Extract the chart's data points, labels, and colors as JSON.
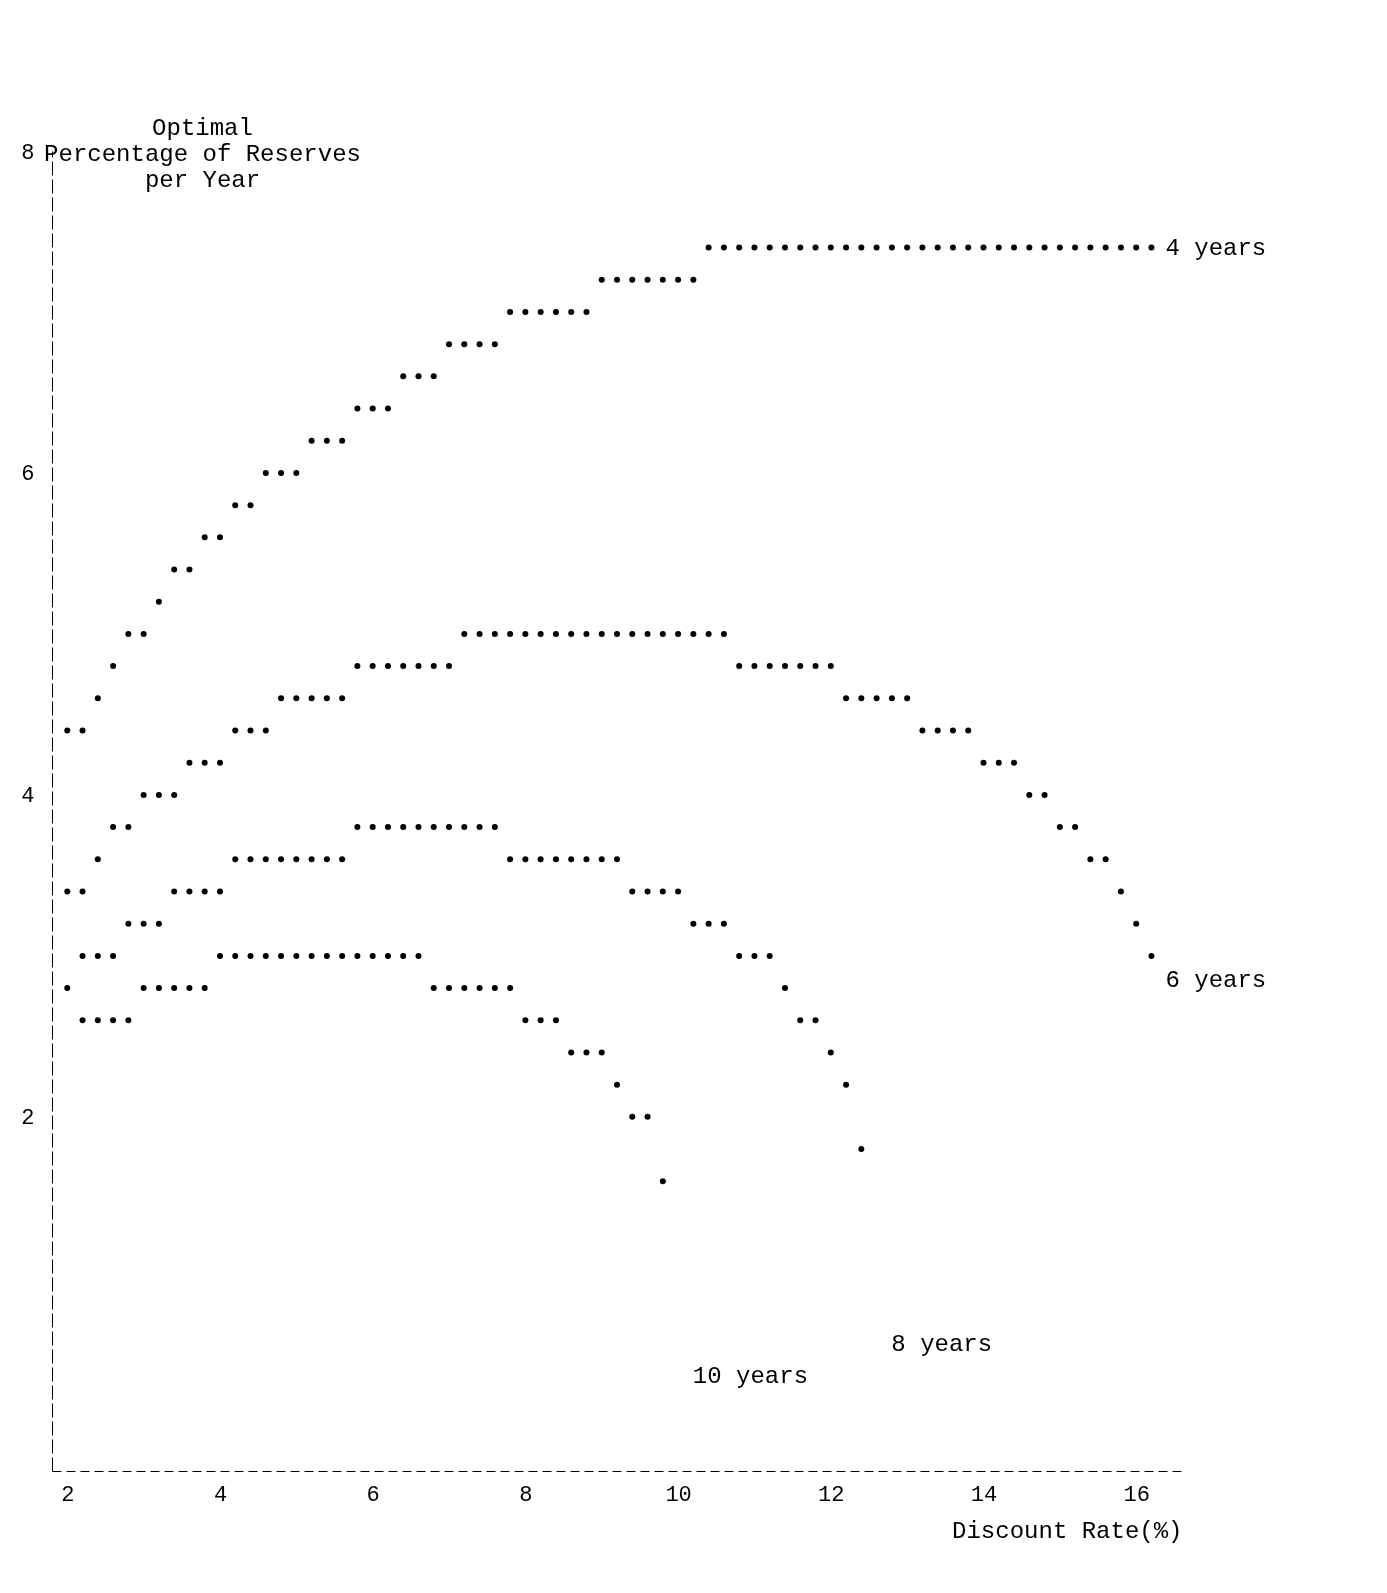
{
  "chart_data": {
    "type": "scatter",
    "xlabel": "Discount Rate(%)",
    "ylabel": "Optimal\nPercentage of Reserves\nper Year",
    "marker": "circle",
    "xlim": [
      1.8,
      16.6
    ],
    "ylim": [
      -0.2,
      8
    ],
    "xticks": [
      2,
      4,
      6,
      8,
      10,
      12,
      14,
      16
    ],
    "yticks": [
      2,
      4,
      6,
      8
    ],
    "series": [
      {
        "name": "4 years",
        "color": "#000000",
        "x": [
          2.0,
          2.2,
          2.4,
          2.6,
          2.8,
          3.0,
          3.2,
          3.4,
          3.6,
          3.8,
          4.0,
          4.2,
          4.4,
          4.6,
          4.8,
          5.0,
          5.2,
          5.4,
          5.6,
          5.8,
          6.0,
          6.2,
          6.4,
          6.6,
          6.8,
          7.0,
          7.2,
          7.4,
          7.6,
          7.8,
          8.0,
          8.2,
          8.4,
          8.6,
          8.8,
          9.0,
          9.2,
          9.4,
          9.6,
          9.8,
          10.0,
          10.2,
          10.4,
          10.6,
          10.8,
          11.0,
          11.2,
          11.4,
          11.6,
          11.8,
          12.0,
          12.2,
          12.4,
          12.6,
          12.8,
          13.0,
          13.2,
          13.4,
          13.6,
          13.8,
          14.0,
          14.2,
          14.4,
          14.6,
          14.8,
          15.0,
          15.2,
          15.4,
          15.6,
          15.8,
          16.0,
          16.2
        ],
        "values": [
          4.4,
          4.4,
          4.6,
          4.8,
          5.0,
          5.0,
          5.2,
          5.4,
          5.4,
          5.6,
          5.6,
          5.8,
          5.8,
          6.0,
          6.0,
          6.0,
          6.2,
          6.2,
          6.2,
          6.4,
          6.4,
          6.4,
          6.6,
          6.6,
          6.6,
          6.8,
          6.8,
          6.8,
          6.8,
          7.0,
          7.0,
          7.0,
          7.0,
          7.0,
          7.0,
          7.2,
          7.2,
          7.2,
          7.2,
          7.2,
          7.2,
          7.2,
          7.4,
          7.4,
          7.4,
          7.4,
          7.4,
          7.4,
          7.4,
          7.4,
          7.4,
          7.4,
          7.4,
          7.4,
          7.4,
          7.4,
          7.4,
          7.4,
          7.4,
          7.4,
          7.4,
          7.4,
          7.4,
          7.4,
          7.4,
          7.4,
          7.4,
          7.4,
          7.4,
          7.4,
          7.4,
          7.4
        ]
      },
      {
        "name": "6 years",
        "color": "#000000",
        "x": [
          2.0,
          2.2,
          2.4,
          2.6,
          2.8,
          3.0,
          3.2,
          3.4,
          3.6,
          3.8,
          4.0,
          4.2,
          4.4,
          4.6,
          4.8,
          5.0,
          5.2,
          5.4,
          5.6,
          5.8,
          6.0,
          6.2,
          6.4,
          6.6,
          6.8,
          7.0,
          7.2,
          7.4,
          7.6,
          7.8,
          8.0,
          8.2,
          8.4,
          8.6,
          8.8,
          9.0,
          9.2,
          9.4,
          9.6,
          9.8,
          10.0,
          10.2,
          10.4,
          10.6,
          10.8,
          11.0,
          11.2,
          11.4,
          11.6,
          11.8,
          12.0,
          12.2,
          12.4,
          12.6,
          12.8,
          13.0,
          13.2,
          13.4,
          13.6,
          13.8,
          14.0,
          14.2,
          14.4,
          14.6,
          14.8,
          15.0,
          15.2,
          15.4,
          15.6,
          15.8,
          16.0,
          16.2
        ],
        "values": [
          3.4,
          3.4,
          3.6,
          3.8,
          3.8,
          4.0,
          4.0,
          4.0,
          4.2,
          4.2,
          4.2,
          4.4,
          4.4,
          4.4,
          4.6,
          4.6,
          4.6,
          4.6,
          4.6,
          4.8,
          4.8,
          4.8,
          4.8,
          4.8,
          4.8,
          4.8,
          5.0,
          5.0,
          5.0,
          5.0,
          5.0,
          5.0,
          5.0,
          5.0,
          5.0,
          5.0,
          5.0,
          5.0,
          5.0,
          5.0,
          5.0,
          5.0,
          5.0,
          5.0,
          4.8,
          4.8,
          4.8,
          4.8,
          4.8,
          4.8,
          4.8,
          4.6,
          4.6,
          4.6,
          4.6,
          4.6,
          4.4,
          4.4,
          4.4,
          4.4,
          4.2,
          4.2,
          4.2,
          4.0,
          4.0,
          3.8,
          3.8,
          3.6,
          3.6,
          3.4,
          3.2,
          3.0
        ]
      },
      {
        "name": "8 years",
        "color": "#000000",
        "x": [
          2.2,
          2.4,
          2.6,
          2.8,
          3.0,
          3.2,
          3.4,
          3.6,
          3.8,
          4.0,
          4.2,
          4.4,
          4.6,
          4.8,
          5.0,
          5.2,
          5.4,
          5.6,
          5.8,
          6.0,
          6.2,
          6.4,
          6.6,
          6.8,
          7.0,
          7.2,
          7.4,
          7.6,
          7.8,
          8.0,
          8.2,
          8.4,
          8.6,
          8.8,
          9.0,
          9.2,
          9.4,
          9.6,
          9.8,
          10.0,
          10.2,
          10.4,
          10.6,
          10.8,
          11.0,
          11.2,
          11.4,
          11.6,
          11.8,
          12.0,
          12.2,
          12.4
        ],
        "values": [
          3.0,
          3.0,
          3.0,
          3.2,
          3.2,
          3.2,
          3.4,
          3.4,
          3.4,
          3.4,
          3.6,
          3.6,
          3.6,
          3.6,
          3.6,
          3.6,
          3.6,
          3.6,
          3.8,
          3.8,
          3.8,
          3.8,
          3.8,
          3.8,
          3.8,
          3.8,
          3.8,
          3.8,
          3.6,
          3.6,
          3.6,
          3.6,
          3.6,
          3.6,
          3.6,
          3.6,
          3.4,
          3.4,
          3.4,
          3.4,
          3.2,
          3.2,
          3.2,
          3.0,
          3.0,
          3.0,
          2.8,
          2.6,
          2.6,
          2.4,
          2.2,
          1.8
        ]
      },
      {
        "name": "10 years",
        "color": "#000000",
        "x": [
          2.0,
          2.2,
          2.4,
          2.6,
          2.8,
          3.0,
          3.2,
          3.4,
          3.6,
          3.8,
          4.0,
          4.2,
          4.4,
          4.6,
          4.8,
          5.0,
          5.2,
          5.4,
          5.6,
          5.8,
          6.0,
          6.2,
          6.4,
          6.6,
          6.8,
          7.0,
          7.2,
          7.4,
          7.6,
          7.8,
          8.0,
          8.2,
          8.4,
          8.6,
          8.8,
          9.0,
          9.2,
          9.4,
          9.6,
          9.8
        ],
        "values": [
          2.8,
          2.6,
          2.6,
          2.6,
          2.6,
          2.8,
          2.8,
          2.8,
          2.8,
          2.8,
          3.0,
          3.0,
          3.0,
          3.0,
          3.0,
          3.0,
          3.0,
          3.0,
          3.0,
          3.0,
          3.0,
          3.0,
          3.0,
          3.0,
          2.8,
          2.8,
          2.8,
          2.8,
          2.8,
          2.8,
          2.6,
          2.6,
          2.6,
          2.4,
          2.4,
          2.4,
          2.2,
          2.0,
          2.0,
          1.6
        ]
      }
    ]
  }
}
